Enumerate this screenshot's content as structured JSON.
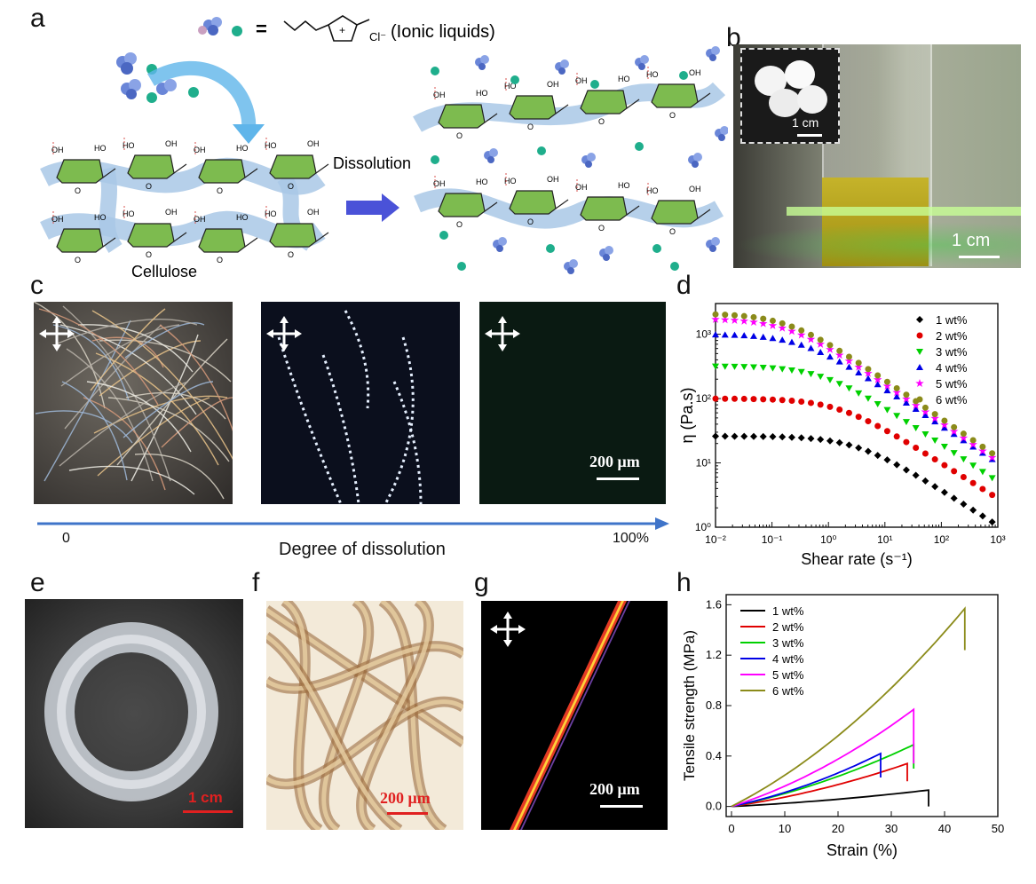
{
  "panels": {
    "a": {
      "letter": "a",
      "legend_equals": "=",
      "legend_label": "(Ionic liquids)",
      "chloride": "Cl⁻",
      "cation_charge": "+",
      "cellulose_label": "Cellulose",
      "dissolution_label": "Dissolution",
      "ring_labels": [
        "OH",
        "HO",
        "O",
        "H"
      ]
    },
    "b": {
      "letter": "b",
      "inset_scale": "1 cm",
      "scale": "1 cm"
    },
    "c": {
      "letter": "c",
      "scale": "200 μm",
      "arrow_start": "0",
      "arrow_end": "100%",
      "arrow_label": "Degree of dissolution"
    },
    "e": {
      "letter": "e",
      "scale": "1 cm"
    },
    "f": {
      "letter": "f",
      "scale": "200 μm"
    },
    "g": {
      "letter": "g",
      "scale": "200 μm"
    },
    "d": {
      "letter": "d"
    },
    "h": {
      "letter": "h"
    }
  },
  "colors": {
    "glucose_ring": "#7dbb4f",
    "backbone_blue": "#a9c8e6",
    "hbond_red": "#d9534f",
    "ion_green": "#1fae8c",
    "arrow_blue": "#3f74c9",
    "series_1wt": "#000000",
    "series_2wt": "#e00000",
    "series_3wt": "#00d000",
    "series_4wt": "#0000e6",
    "series_5wt": "#ff00ff",
    "series_6wt": "#8b8b1a"
  },
  "chart_data": [
    {
      "panel": "d",
      "type": "scatter",
      "xlabel": "Shear rate (s⁻¹)",
      "ylabel": "η (Pa.s)",
      "xscale": "log",
      "yscale": "log",
      "xlim": [
        0.01,
        1000
      ],
      "ylim": [
        1,
        3000
      ],
      "xticks": [
        "10⁻²",
        "10⁻¹",
        "10⁰",
        "10¹",
        "10²",
        "10³"
      ],
      "yticks": [
        "10⁰",
        "10¹",
        "10²",
        "10³"
      ],
      "legend_position": "top-right",
      "series": [
        {
          "name": "1 wt%",
          "marker": "diamond",
          "eta0": 26,
          "gamma_c": 3.0,
          "n": 0.55
        },
        {
          "name": "2 wt%",
          "marker": "circle",
          "eta0": 100,
          "gamma_c": 1.5,
          "n": 0.55
        },
        {
          "name": "3 wt%",
          "marker": "triangle-down",
          "eta0": 320,
          "gamma_c": 0.8,
          "n": 0.58
        },
        {
          "name": "4 wt%",
          "marker": "triangle-up",
          "eta0": 1000,
          "gamma_c": 0.35,
          "n": 0.58
        },
        {
          "name": "5 wt%",
          "marker": "star",
          "eta0": 1750,
          "gamma_c": 0.2,
          "n": 0.6
        },
        {
          "name": "6 wt%",
          "marker": "circle",
          "eta0": 2100,
          "gamma_c": 0.19,
          "n": 0.6
        }
      ],
      "point_count": 30
    },
    {
      "panel": "h",
      "type": "line",
      "xlabel": "Strain (%)",
      "ylabel": "Tensile strength (MPa)",
      "xlim": [
        -1,
        50
      ],
      "ylim": [
        -0.08,
        1.68
      ],
      "xticks": [
        0,
        10,
        20,
        30,
        40,
        50
      ],
      "yticks": [
        "0.0",
        "0.4",
        "0.8",
        "1.2",
        "1.6"
      ],
      "legend_position": "top-left",
      "series": [
        {
          "name": "1 wt%",
          "strain_max": 37.0,
          "peak": 0.13,
          "drop_to": 0.0
        },
        {
          "name": "2 wt%",
          "strain_max": 33.0,
          "peak": 0.34,
          "drop_to": 0.2
        },
        {
          "name": "3 wt%",
          "strain_max": 34.2,
          "peak": 0.49,
          "drop_to": 0.3
        },
        {
          "name": "4 wt%",
          "strain_max": 28.0,
          "peak": 0.42,
          "drop_to": 0.23
        },
        {
          "name": "5 wt%",
          "strain_max": 34.2,
          "peak": 0.77,
          "drop_to": 0.34
        },
        {
          "name": "6 wt%",
          "strain_max": 43.8,
          "peak": 1.57,
          "drop_to": 1.24
        }
      ]
    }
  ]
}
